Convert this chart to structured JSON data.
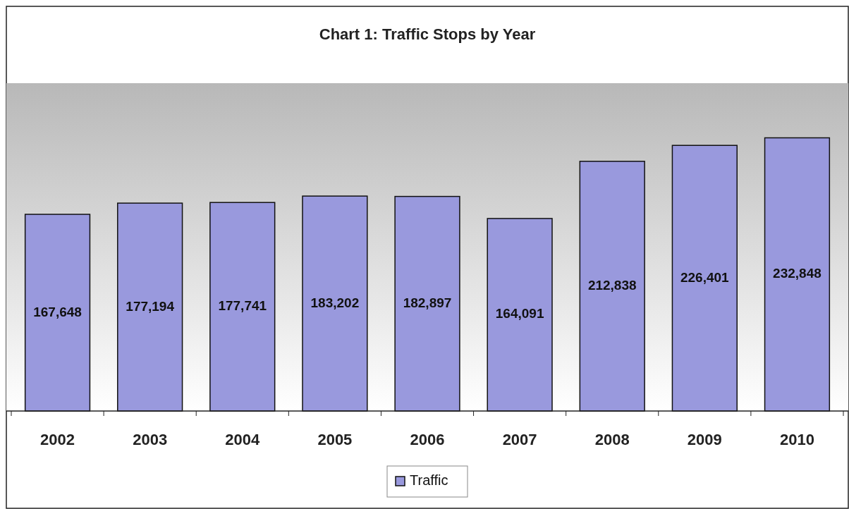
{
  "chart_data": {
    "type": "bar",
    "title": "Chart 1: Traffic Stops by Year",
    "categories": [
      "2002",
      "2003",
      "2004",
      "2005",
      "2006",
      "2007",
      "2008",
      "2009",
      "2010"
    ],
    "series": [
      {
        "name": "Traffic",
        "color": "#9999dd",
        "values": [
          167648,
          177194,
          177741,
          183202,
          182897,
          164091,
          212838,
          226401,
          232848
        ],
        "value_labels": [
          "167,648",
          "177,194",
          "177,741",
          "183,202",
          "182,897",
          "164,091",
          "212,838",
          "226,401",
          "232,848"
        ]
      }
    ],
    "legend": "bottom"
  }
}
